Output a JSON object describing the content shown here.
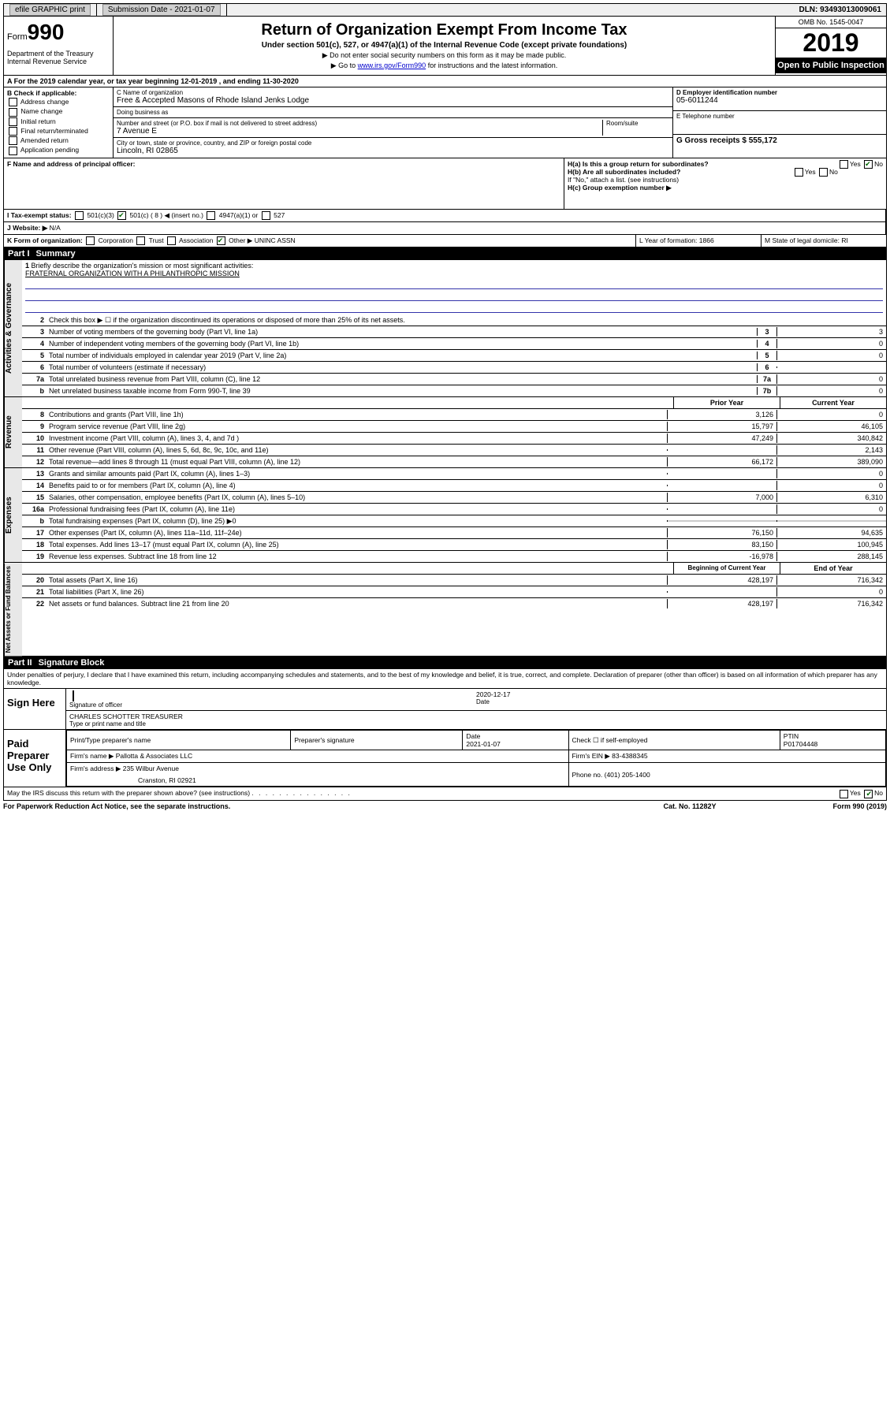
{
  "topbar": {
    "efile": "efile GRAPHIC print",
    "submission_label": "Submission Date - 2021-01-07",
    "dln_label": "DLN: 93493013009061"
  },
  "header": {
    "form_word": "Form",
    "form_num": "990",
    "dept": "Department of the Treasury\nInternal Revenue Service",
    "title": "Return of Organization Exempt From Income Tax",
    "subtitle": "Under section 501(c), 527, or 4947(a)(1) of the Internal Revenue Code (except private foundations)",
    "note1": "▶ Do not enter social security numbers on this form as it may be made public.",
    "note2_pre": "▶ Go to ",
    "note2_link": "www.irs.gov/Form990",
    "note2_post": " for instructions and the latest information.",
    "omb": "OMB No. 1545-0047",
    "year": "2019",
    "inspection": "Open to Public Inspection"
  },
  "row_a": "A For the 2019 calendar year, or tax year beginning 12-01-2019   , and ending 11-30-2020",
  "section_b": {
    "label": "B Check if applicable:",
    "opts": [
      "Address change",
      "Name change",
      "Initial return",
      "Final return/terminated",
      "Amended return",
      "Application pending"
    ]
  },
  "section_c": {
    "name_label": "C Name of organization",
    "name": "Free & Accepted Masons of Rhode Island Jenks Lodge",
    "dba_label": "Doing business as",
    "dba": "",
    "street_label": "Number and street (or P.O. box if mail is not delivered to street address)",
    "room_label": "Room/suite",
    "street": "7 Avenue E",
    "city_label": "City or town, state or province, country, and ZIP or foreign postal code",
    "city": "Lincoln, RI  02865"
  },
  "section_de": {
    "d_label": "D Employer identification number",
    "d_val": "05-6011244",
    "e_label": "E Telephone number",
    "e_val": "",
    "g_label": "G Gross receipts $ 555,172"
  },
  "section_fh": {
    "f_label": "F  Name and address of principal officer:",
    "ha": "H(a)  Is this a group return for subordinates?",
    "hb": "H(b)  Are all subordinates included?",
    "hb_note": "If \"No,\" attach a list. (see instructions)",
    "hc": "H(c)  Group exemption number ▶",
    "yes": "Yes",
    "no": "No"
  },
  "section_i": {
    "label": "I   Tax-exempt status:",
    "opts": [
      "501(c)(3)",
      "501(c) ( 8 ) ◀ (insert no.)",
      "4947(a)(1) or",
      "527"
    ]
  },
  "section_j": {
    "label": "J   Website: ▶",
    "val": "N/A"
  },
  "section_k": {
    "label": "K Form of organization:",
    "opts": [
      "Corporation",
      "Trust",
      "Association",
      "Other ▶"
    ],
    "other_val": "UNINC ASSN",
    "l_label": "L Year of formation: 1866",
    "m_label": "M State of legal domicile: RI"
  },
  "part1": {
    "label": "Part I",
    "title": "Summary"
  },
  "mission": {
    "num": "1",
    "label": "Briefly describe the organization's mission or most significant activities:",
    "text": "FRATERNAL ORGANIZATION WITH A PHILANTHROPIC MISSION"
  },
  "governance": {
    "side": "Activities & Governance",
    "rows": [
      {
        "n": "2",
        "d": "Check this box ▶ ☐  if the organization discontinued its operations or disposed of more than 25% of its net assets."
      },
      {
        "n": "3",
        "d": "Number of voting members of the governing body (Part VI, line 1a)",
        "ln": "3",
        "v": "3"
      },
      {
        "n": "4",
        "d": "Number of independent voting members of the governing body (Part VI, line 1b)",
        "ln": "4",
        "v": "0"
      },
      {
        "n": "5",
        "d": "Total number of individuals employed in calendar year 2019 (Part V, line 2a)",
        "ln": "5",
        "v": "0"
      },
      {
        "n": "6",
        "d": "Total number of volunteers (estimate if necessary)",
        "ln": "6",
        "v": ""
      },
      {
        "n": "7a",
        "d": "Total unrelated business revenue from Part VIII, column (C), line 12",
        "ln": "7a",
        "v": "0"
      },
      {
        "n": "b",
        "d": "Net unrelated business taxable income from Form 990-T, line 39",
        "ln": "7b",
        "v": "0"
      }
    ]
  },
  "revenue": {
    "side": "Revenue",
    "header_prior": "Prior Year",
    "header_current": "Current Year",
    "rows": [
      {
        "n": "8",
        "d": "Contributions and grants (Part VIII, line 1h)",
        "p": "3,126",
        "c": "0"
      },
      {
        "n": "9",
        "d": "Program service revenue (Part VIII, line 2g)",
        "p": "15,797",
        "c": "46,105"
      },
      {
        "n": "10",
        "d": "Investment income (Part VIII, column (A), lines 3, 4, and 7d )",
        "p": "47,249",
        "c": "340,842"
      },
      {
        "n": "11",
        "d": "Other revenue (Part VIII, column (A), lines 5, 6d, 8c, 9c, 10c, and 11e)",
        "p": "",
        "c": "2,143"
      },
      {
        "n": "12",
        "d": "Total revenue—add lines 8 through 11 (must equal Part VIII, column (A), line 12)",
        "p": "66,172",
        "c": "389,090"
      }
    ]
  },
  "expenses": {
    "side": "Expenses",
    "rows": [
      {
        "n": "13",
        "d": "Grants and similar amounts paid (Part IX, column (A), lines 1–3)",
        "p": "",
        "c": "0"
      },
      {
        "n": "14",
        "d": "Benefits paid to or for members (Part IX, column (A), line 4)",
        "p": "",
        "c": "0"
      },
      {
        "n": "15",
        "d": "Salaries, other compensation, employee benefits (Part IX, column (A), lines 5–10)",
        "p": "7,000",
        "c": "6,310"
      },
      {
        "n": "16a",
        "d": "Professional fundraising fees (Part IX, column (A), line 11e)",
        "p": "",
        "c": "0"
      },
      {
        "n": "b",
        "d": "Total fundraising expenses (Part IX, column (D), line 25) ▶0",
        "p": "-",
        "c": "-"
      },
      {
        "n": "17",
        "d": "Other expenses (Part IX, column (A), lines 11a–11d, 11f–24e)",
        "p": "76,150",
        "c": "94,635"
      },
      {
        "n": "18",
        "d": "Total expenses. Add lines 13–17 (must equal Part IX, column (A), line 25)",
        "p": "83,150",
        "c": "100,945"
      },
      {
        "n": "19",
        "d": "Revenue less expenses. Subtract line 18 from line 12",
        "p": "-16,978",
        "c": "288,145"
      }
    ]
  },
  "balances": {
    "side": "Net Assets or Fund Balances",
    "header_begin": "Beginning of Current Year",
    "header_end": "End of Year",
    "rows": [
      {
        "n": "20",
        "d": "Total assets (Part X, line 16)",
        "p": "428,197",
        "c": "716,342"
      },
      {
        "n": "21",
        "d": "Total liabilities (Part X, line 26)",
        "p": "",
        "c": "0"
      },
      {
        "n": "22",
        "d": "Net assets or fund balances. Subtract line 21 from line 20",
        "p": "428,197",
        "c": "716,342"
      }
    ]
  },
  "part2": {
    "label": "Part II",
    "title": "Signature Block",
    "intro": "Under penalties of perjury, I declare that I have examined this return, including accompanying schedules and statements, and to the best of my knowledge and belief, it is true, correct, and complete. Declaration of preparer (other than officer) is based on all information of which preparer has any knowledge."
  },
  "sign": {
    "label": "Sign Here",
    "sig_label": "Signature of officer",
    "date_label": "Date",
    "date": "2020-12-17",
    "name": "CHARLES SCHOTTER  TREASURER",
    "name_label": "Type or print name and title"
  },
  "preparer": {
    "label": "Paid Preparer Use Only",
    "h_name": "Print/Type preparer's name",
    "h_sig": "Preparer's signature",
    "h_date": "Date",
    "date": "2021-01-07",
    "h_check": "Check ☐ if self-employed",
    "h_ptin": "PTIN",
    "ptin": "P01704448",
    "firm_name_label": "Firm's name    ▶",
    "firm_name": "Pallotta & Associates LLC",
    "firm_ein_label": "Firm's EIN ▶",
    "firm_ein": "83-4388345",
    "firm_addr_label": "Firm's address ▶",
    "firm_addr": "235 Wilbur Avenue",
    "firm_city": "Cranston, RI  02921",
    "phone_label": "Phone no. (401) 205-1400"
  },
  "discuss": "May the IRS discuss this return with the preparer shown above? (see instructions)",
  "footer": {
    "left": "For Paperwork Reduction Act Notice, see the separate instructions.",
    "mid": "Cat. No. 11282Y",
    "right": "Form 990 (2019)"
  }
}
